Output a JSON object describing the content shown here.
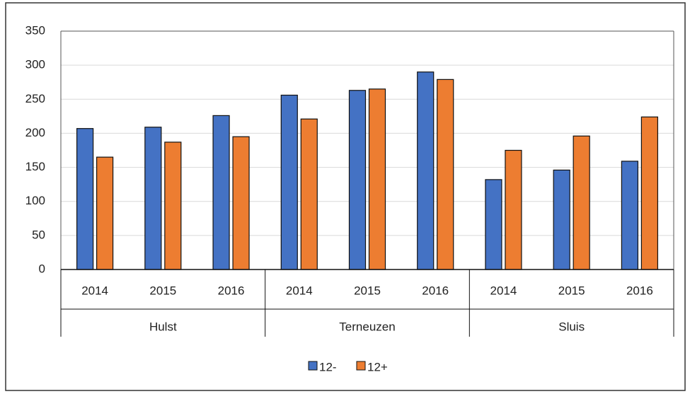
{
  "chart_data": {
    "type": "bar",
    "categories": [
      "2014",
      "2015",
      "2016",
      "2014",
      "2015",
      "2016",
      "2014",
      "2015",
      "2016"
    ],
    "groups": [
      "Hulst",
      "Terneuzen",
      "Sluis"
    ],
    "series": [
      {
        "name": "12-",
        "color": "#4472c4",
        "values": [
          207,
          209,
          226,
          256,
          263,
          290,
          132,
          146,
          159
        ]
      },
      {
        "name": "12+",
        "color": "#ed7d31",
        "values": [
          165,
          187,
          195,
          221,
          265,
          279,
          175,
          196,
          224
        ]
      }
    ],
    "ylim": [
      0,
      350
    ],
    "yticks": [
      0,
      50,
      100,
      150,
      200,
      250,
      300,
      350
    ],
    "grid": true,
    "legend": "bottom"
  }
}
